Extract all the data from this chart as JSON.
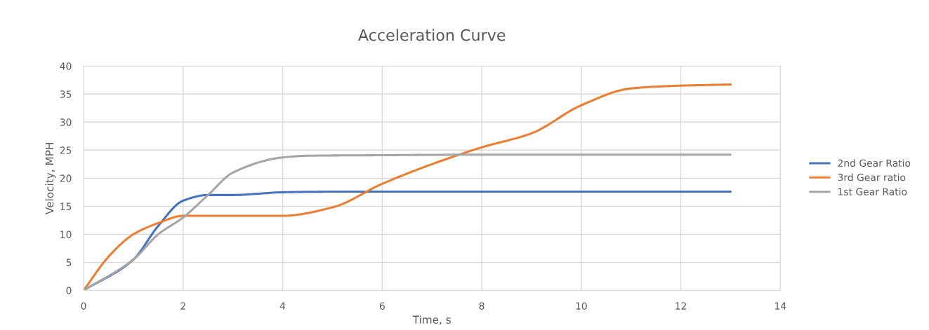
{
  "chart_data": {
    "type": "line",
    "title": "Acceleration Curve",
    "xlabel": "Time, s",
    "ylabel": "Velocity, MPH",
    "xlim": [
      0,
      14
    ],
    "xticks": [
      0,
      2,
      4,
      6,
      8,
      10,
      12,
      14
    ],
    "ylim": [
      0,
      40
    ],
    "yticks": [
      0,
      5,
      10,
      15,
      20,
      25,
      30,
      35,
      40
    ],
    "grid": true,
    "legend": "right",
    "marker": "none",
    "line_style": "solid",
    "series": [
      {
        "name": "2nd Gear Ratio",
        "color": "#4472c4",
        "x": [
          0,
          1,
          1.5,
          2,
          2.5,
          3,
          4,
          5,
          6,
          8,
          10,
          12,
          13
        ],
        "values": [
          0,
          5.5,
          11.5,
          16,
          17,
          17,
          17.5,
          17.6,
          17.6,
          17.6,
          17.6,
          17.6,
          17.6
        ]
      },
      {
        "name": "3rd Gear ratio",
        "color": "#ed7d31",
        "x": [
          0,
          0.5,
          1,
          1.5,
          2,
          3,
          4,
          5,
          6,
          7,
          8,
          9,
          10,
          11,
          12,
          13
        ],
        "values": [
          0,
          6,
          10,
          12,
          13.3,
          13.3,
          13.3,
          14.8,
          19,
          22.5,
          25.5,
          28,
          33,
          36,
          36.5,
          36.7
        ]
      },
      {
        "name": "1st Gear Ratio",
        "color": "#a5a5a5",
        "x": [
          0,
          1,
          1.5,
          2,
          2.5,
          3,
          4,
          4.5,
          6,
          8,
          10,
          12,
          13
        ],
        "values": [
          0,
          5.5,
          10,
          13,
          17,
          21,
          23.7,
          24,
          24.1,
          24.2,
          24.2,
          24.2,
          24.2
        ]
      }
    ]
  }
}
